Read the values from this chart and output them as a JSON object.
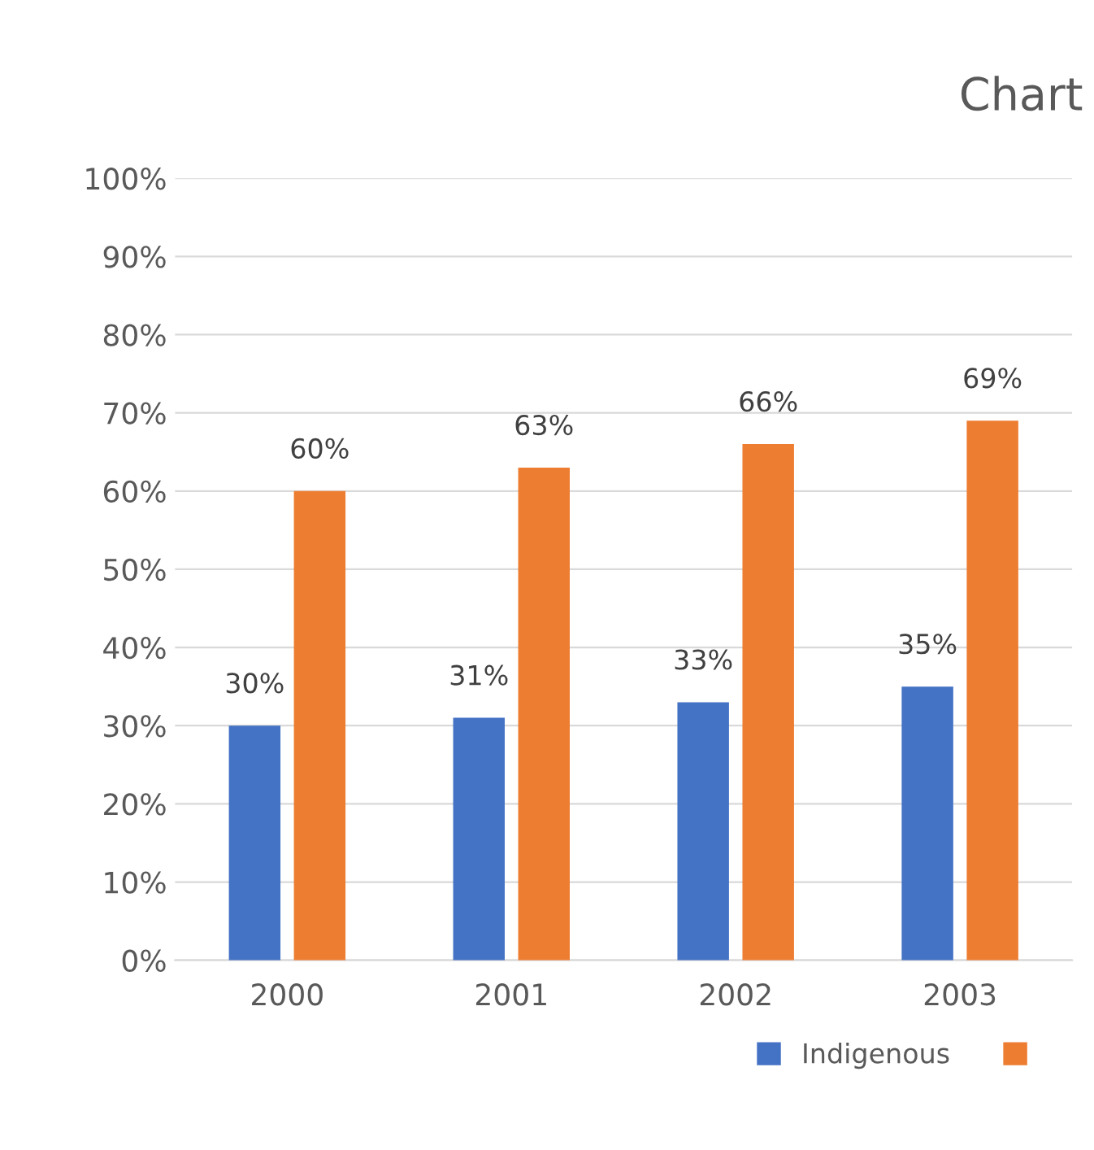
{
  "chart_data": {
    "type": "bar",
    "title": "Chart",
    "categories": [
      "2000",
      "2001",
      "2002",
      "2003"
    ],
    "series": [
      {
        "name": "Indigenous",
        "color": "#4472c4",
        "values": [
          30,
          31,
          33,
          35
        ],
        "value_labels": [
          "30%",
          "31%",
          "33%",
          "35%"
        ]
      },
      {
        "color": "#ed7d31",
        "values": [
          60,
          63,
          66,
          69
        ],
        "value_labels": [
          "60%",
          "63%",
          "66%",
          "69%"
        ]
      }
    ],
    "ylim": [
      0,
      100
    ],
    "yticks": [
      {
        "value": 0,
        "label": "0%"
      },
      {
        "value": 10,
        "label": "10%"
      },
      {
        "value": 20,
        "label": "20%"
      },
      {
        "value": 30,
        "label": "30%"
      },
      {
        "value": 40,
        "label": "40%"
      },
      {
        "value": 50,
        "label": "50%"
      },
      {
        "value": 60,
        "label": "60%"
      },
      {
        "value": 70,
        "label": "70%"
      },
      {
        "value": 80,
        "label": "80%"
      },
      {
        "value": 90,
        "label": "90%"
      },
      {
        "value": 100,
        "label": "100%"
      }
    ],
    "grid": "y",
    "legend": "bottom right"
  }
}
